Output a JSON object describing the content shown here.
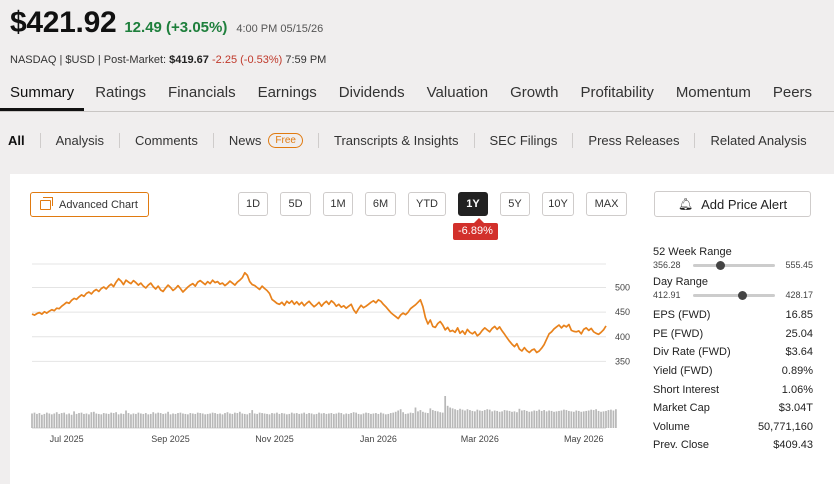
{
  "quote": {
    "price": "$421.92",
    "change": "12.49 (+3.05%)",
    "time": "4:00 PM 05/15/26",
    "exchange": "NASDAQ | $USD | Post-Market:",
    "post_price": "$419.67",
    "post_change": "-2.25 (-0.53%)",
    "post_time": "7:59 PM"
  },
  "tabs": [
    "Summary",
    "Ratings",
    "Financials",
    "Earnings",
    "Dividends",
    "Valuation",
    "Growth",
    "Profitability",
    "Momentum",
    "Peers"
  ],
  "subtabs": {
    "all": "All",
    "analysis": "Analysis",
    "comments": "Comments",
    "news": "News",
    "news_badge": "Free",
    "transcripts": "Transcripts & Insights",
    "sec": "SEC Filings",
    "press": "Press Releases",
    "related": "Related Analysis"
  },
  "chart_controls": {
    "advanced_chart": "Advanced Chart",
    "periods": [
      "1D",
      "5D",
      "1M",
      "6M",
      "YTD",
      "1Y",
      "5Y",
      "10Y",
      "MAX"
    ],
    "active_period": "1Y",
    "performance": "-6.89%",
    "add_alert": "Add Price Alert"
  },
  "chart_data": {
    "type": "line",
    "ylim": [
      300,
      560
    ],
    "y_ticks": [
      "500",
      "450",
      "400",
      "350"
    ],
    "y_tick_values": [
      500,
      450,
      400,
      350
    ],
    "x_labels": [
      "Jul 2025",
      "Sep 2025",
      "Nov 2025",
      "Jan 2026",
      "Mar 2026",
      "May 2026"
    ],
    "x_label_index": [
      14,
      56,
      98,
      140,
      181,
      223
    ],
    "prices": [
      446,
      444,
      447,
      449,
      446,
      451,
      448,
      452,
      455,
      453,
      458,
      457,
      462,
      466,
      470,
      468,
      474,
      478,
      476,
      481,
      485,
      482,
      488,
      491,
      487,
      493,
      496,
      492,
      498,
      501,
      497,
      503,
      507,
      502,
      511,
      518,
      513,
      506,
      515,
      511,
      508,
      514,
      510,
      505,
      509,
      503,
      499,
      505,
      509,
      502,
      497,
      503,
      495,
      492,
      499,
      505,
      500,
      494,
      498,
      504,
      498,
      491,
      496,
      501,
      505,
      508,
      503,
      511,
      514,
      510,
      506,
      512,
      508,
      515,
      510,
      512,
      507,
      509,
      504,
      508,
      513,
      509,
      505,
      511,
      515,
      520,
      530,
      525,
      512,
      506,
      504,
      500,
      496,
      503,
      498,
      494,
      488,
      476,
      472,
      468,
      466,
      470,
      464,
      472,
      468,
      473,
      466,
      471,
      465,
      470,
      463,
      468,
      472,
      466,
      461,
      465,
      470,
      462,
      468,
      472,
      466,
      473,
      469,
      462,
      466,
      460,
      463,
      458,
      462,
      466,
      455,
      448,
      457,
      464,
      459,
      462,
      466,
      470,
      473,
      469,
      475,
      472,
      466,
      461,
      455,
      449,
      445,
      441,
      437,
      444,
      448,
      445,
      450,
      457,
      461,
      465,
      470,
      475,
      461,
      439,
      426,
      434,
      421,
      419,
      427,
      431,
      424,
      414,
      419,
      411,
      413,
      409,
      418,
      407,
      412,
      405,
      415,
      409,
      406,
      410,
      402,
      406,
      413,
      418,
      414,
      410,
      417,
      421,
      415,
      420,
      412,
      405,
      398,
      391,
      385,
      380,
      386,
      375,
      371,
      378,
      372,
      368,
      373,
      375,
      368,
      371,
      377,
      384,
      395,
      406,
      410,
      416,
      420,
      424,
      418,
      423,
      420,
      425,
      413,
      411,
      410,
      412,
      406,
      415,
      418,
      413,
      417,
      410,
      407,
      405,
      409,
      414,
      422
    ],
    "volumes": [
      34,
      36,
      33,
      35,
      31,
      33,
      36,
      34,
      32,
      34,
      37,
      33,
      35,
      36,
      32,
      34,
      31,
      39,
      33,
      35,
      36,
      33,
      34,
      32,
      37,
      38,
      34,
      33,
      32,
      35,
      34,
      33,
      36,
      35,
      37,
      32,
      34,
      33,
      41,
      35,
      32,
      34,
      33,
      36,
      34,
      33,
      35,
      32,
      33,
      37,
      34,
      36,
      35,
      33,
      34,
      38,
      32,
      34,
      33,
      35,
      36,
      34,
      33,
      32,
      35,
      34,
      33,
      36,
      35,
      34,
      32,
      33,
      34,
      36,
      35,
      33,
      34,
      32,
      35,
      37,
      34,
      33,
      36,
      35,
      38,
      34,
      33,
      32,
      35,
      42,
      34,
      33,
      36,
      35,
      34,
      33,
      32,
      35,
      34,
      36,
      33,
      35,
      34,
      32,
      33,
      36,
      34,
      35,
      33,
      34,
      36,
      33,
      35,
      34,
      32,
      33,
      36,
      34,
      35,
      33,
      34,
      35,
      33,
      34,
      36,
      35,
      32,
      34,
      33,
      35,
      37,
      36,
      33,
      32,
      34,
      36,
      35,
      33,
      34,
      35,
      33,
      36,
      34,
      32,
      33,
      35,
      36,
      38,
      41,
      44,
      37,
      33,
      34,
      36,
      35,
      48,
      39,
      42,
      38,
      36,
      35,
      46,
      42,
      40,
      39,
      37,
      36,
      75,
      52,
      48,
      46,
      44,
      42,
      45,
      43,
      41,
      44,
      42,
      40,
      39,
      43,
      41,
      40,
      42,
      44,
      43,
      39,
      41,
      40,
      38,
      39,
      42,
      41,
      40,
      38,
      39,
      37,
      45,
      41,
      42,
      40,
      38,
      39,
      41,
      40,
      43,
      40,
      42,
      39,
      41,
      40,
      38,
      39,
      40,
      41,
      43,
      42,
      40,
      39,
      38,
      41,
      40,
      38,
      39,
      40,
      41,
      43,
      42,
      44,
      40,
      38,
      39,
      40,
      42,
      43,
      41,
      44
    ]
  },
  "stats": {
    "week52": {
      "label": "52 Week Range",
      "low": "356.28",
      "high": "555.45",
      "position": 0.33
    },
    "day": {
      "label": "Day Range",
      "low": "412.91",
      "high": "428.17",
      "position": 0.6
    },
    "rows": [
      {
        "label": "EPS (FWD)",
        "value": "16.85"
      },
      {
        "label": "PE (FWD)",
        "value": "25.04"
      },
      {
        "label": "Div Rate (FWD)",
        "value": "$3.64"
      },
      {
        "label": "Yield (FWD)",
        "value": "0.89%"
      },
      {
        "label": "Short Interest",
        "value": "1.06%"
      },
      {
        "label": "Market Cap",
        "value": "$3.04T"
      },
      {
        "label": "Volume",
        "value": "50,771,160"
      },
      {
        "label": "Prev. Close",
        "value": "$409.43"
      }
    ]
  },
  "colors": {
    "line": "#e8821c",
    "up": "#1e7f3c",
    "down": "#c0392b",
    "accent": "#e07a10"
  }
}
